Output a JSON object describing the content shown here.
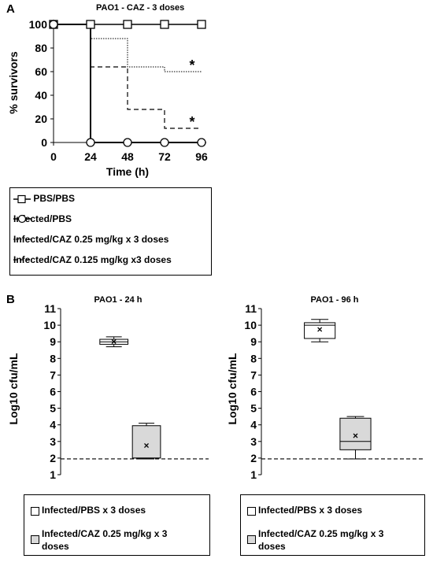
{
  "panel_a_letter": "A",
  "panel_b_letter": "B",
  "chart_data": [
    {
      "type": "line",
      "title": "PAO1 - CAZ - 3 doses",
      "xlabel": "Time (h)",
      "ylabel": "% survivors",
      "xlim": [
        0,
        96
      ],
      "ylim": [
        0,
        100
      ],
      "xticks": [
        "0",
        "24",
        "48",
        "72",
        "96"
      ],
      "yticks": [
        "0",
        "20",
        "40",
        "60",
        "80",
        "100"
      ],
      "grid": false,
      "series": [
        {
          "name": "PBS/PBS",
          "x": [
            0,
            24,
            48,
            72,
            96
          ],
          "values": [
            100,
            100,
            100,
            100,
            100
          ],
          "marker": "square",
          "style": "solid"
        },
        {
          "name": "Infected/PBS",
          "x": [
            0,
            24,
            24,
            48,
            72,
            96
          ],
          "values": [
            100,
            100,
            0,
            0,
            0,
            0
          ],
          "marker": "circle",
          "style": "solid"
        },
        {
          "name": "Infected/CAZ 0.25 mg/kg x 3 doses",
          "x": [
            0,
            24,
            48,
            72,
            96
          ],
          "values": [
            100,
            88,
            64,
            60,
            60
          ],
          "marker": "none",
          "style": "dotted"
        },
        {
          "name": "Infected/CAZ 0.125 mg/kg x3 doses",
          "x": [
            0,
            24,
            48,
            72,
            96
          ],
          "values": [
            100,
            64,
            28,
            12,
            12
          ],
          "marker": "none",
          "style": "dashed"
        }
      ],
      "annotations": [
        "*",
        "*"
      ],
      "legend": {
        "placement": "below"
      }
    },
    {
      "type": "box",
      "title": "PAO1 - 24 h",
      "ylabel": "Log10 cfu/mL",
      "ylim": [
        1,
        11
      ],
      "yticks": [
        "1",
        "2",
        "3",
        "4",
        "5",
        "6",
        "7",
        "8",
        "9",
        "10",
        "11"
      ],
      "threshold": 1.95,
      "series": [
        {
          "name": "Infected/PBS x 3 doses",
          "min": 8.7,
          "q1": 8.85,
          "median": 9.0,
          "q3": 9.15,
          "max": 9.3,
          "mean": 9.0,
          "color": "#ffffff"
        },
        {
          "name": "Infected/CAZ 0.25 mg/kg x 3 doses",
          "min": 1.95,
          "q1": 2.0,
          "median": 2.0,
          "q3": 3.95,
          "max": 4.1,
          "mean": 2.75,
          "color": "#d9d9d9"
        }
      ],
      "legend": {
        "placement": "below"
      }
    },
    {
      "type": "box",
      "title": "PAO1 - 96 h",
      "ylabel": "Log10 cfu/mL",
      "ylim": [
        1,
        11
      ],
      "yticks": [
        "1",
        "2",
        "3",
        "4",
        "5",
        "6",
        "7",
        "8",
        "9",
        "10",
        "11"
      ],
      "threshold": 1.95,
      "series": [
        {
          "name": "Infected/PBS x 3 doses",
          "min": 9.0,
          "q1": 9.2,
          "median": 10.0,
          "q3": 10.15,
          "max": 10.35,
          "mean": 9.75,
          "color": "#ffffff"
        },
        {
          "name": "Infected/CAZ 0.25 mg/kg x 3 doses",
          "min": 1.95,
          "q1": 2.5,
          "median": 3.0,
          "q3": 4.4,
          "max": 4.5,
          "mean": 3.35,
          "color": "#d9d9d9"
        }
      ],
      "legend": {
        "placement": "below"
      }
    }
  ],
  "legend_a": [
    "PBS/PBS",
    "Infected/PBS",
    "Infected/CAZ 0.25 mg/kg x 3 doses",
    "Infected/CAZ 0.125 mg/kg x3 doses"
  ],
  "legend_b1": {
    "item1": "Infected/PBS x 3 doses",
    "item2_line1": "Infected/CAZ  0.25 mg/kg x 3",
    "item2_line2": "doses"
  },
  "legend_b2": {
    "item1": "Infected/PBS x 3 doses",
    "item2_line1": "Infected/CAZ 0.25 mg/kg x 3",
    "item2_line2": "doses"
  }
}
